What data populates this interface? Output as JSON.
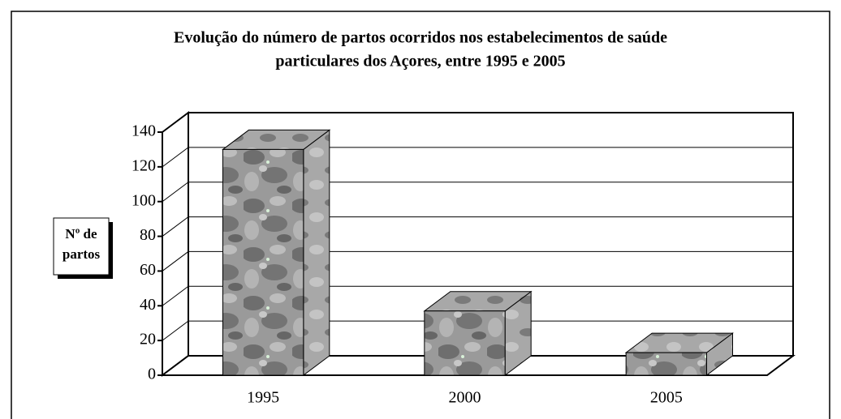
{
  "chart_data": {
    "type": "bar3d",
    "title": [
      "Evolução do número de partos ocorridos nos estabelecimentos de saúde",
      "particulares dos Açores, entre 1995 e 2005"
    ],
    "y_label": [
      "Nº de",
      "partos"
    ],
    "categories": [
      "1995",
      "2000",
      "2005"
    ],
    "values": [
      130,
      37,
      13
    ],
    "color": "#8c8c8c",
    "ylim": [
      0,
      140
    ],
    "yticks": [
      0,
      20,
      40,
      60,
      80,
      100,
      120,
      140
    ],
    "grid": true
  }
}
